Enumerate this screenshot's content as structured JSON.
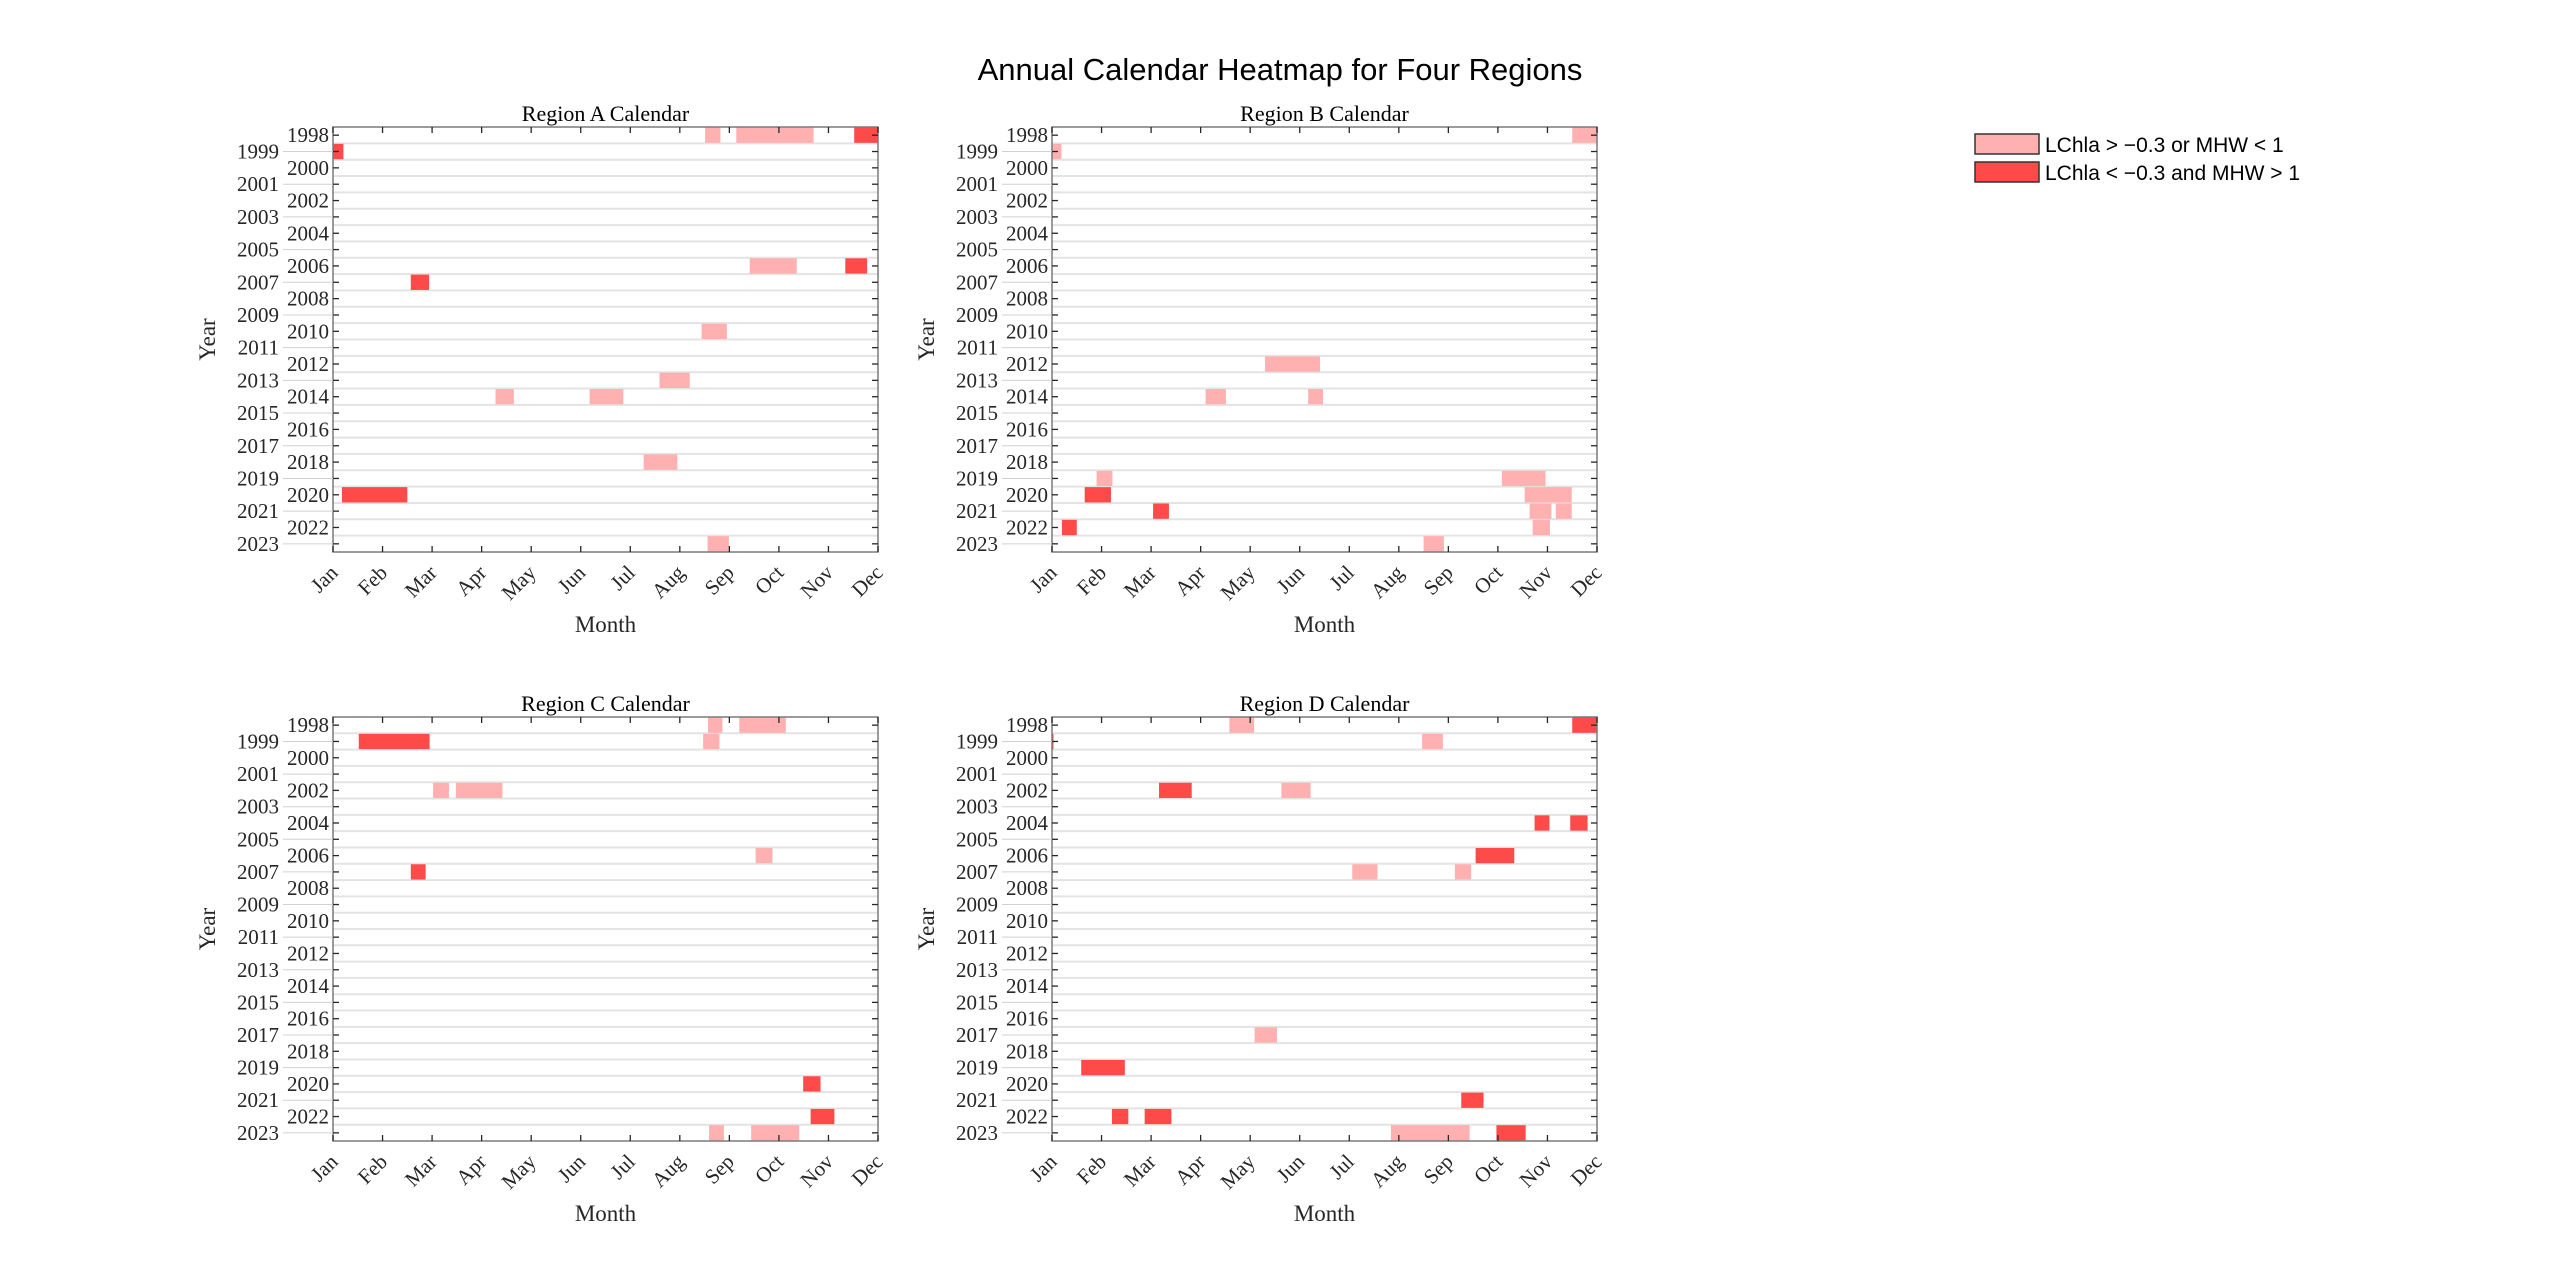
{
  "suptitle": "Annual Calendar Heatmap for Four Regions",
  "legend": [
    {
      "label": "LChla > −0.3 or MHW < 1",
      "color": "#FFB1B1",
      "class": "mild"
    },
    {
      "label": "LChla < −0.3 and MHW > 1",
      "color": "#FF4A4A",
      "class": "severe"
    }
  ],
  "chart_data": [
    {
      "type": "heatmap",
      "title": "Region A Calendar",
      "xlabel": "Month",
      "ylabel": "Year",
      "xticks": [
        "Jan",
        "Feb",
        "Mar",
        "Apr",
        "May",
        "Jun",
        "Jul",
        "Aug",
        "Sep",
        "Oct",
        "Nov",
        "Dec"
      ],
      "xlim": [
        1,
        12
      ],
      "years": [
        1998,
        1999,
        2000,
        2001,
        2002,
        2003,
        2004,
        2005,
        2006,
        2007,
        2008,
        2009,
        2010,
        2011,
        2012,
        2013,
        2014,
        2015,
        2016,
        2017,
        2018,
        2019,
        2020,
        2021,
        2022,
        2023
      ],
      "grid": true,
      "events": [
        {
          "year": 1998,
          "start": 8.51,
          "end": 8.82,
          "class": "mild"
        },
        {
          "year": 1998,
          "start": 9.14,
          "end": 10.7,
          "class": "mild"
        },
        {
          "year": 1998,
          "start": 11.52,
          "end": 12.0,
          "class": "severe"
        },
        {
          "year": 1999,
          "start": 1.0,
          "end": 1.21,
          "class": "severe"
        },
        {
          "year": 2006,
          "start": 9.41,
          "end": 10.36,
          "class": "mild"
        },
        {
          "year": 2006,
          "start": 11.34,
          "end": 11.78,
          "class": "severe"
        },
        {
          "year": 2007,
          "start": 2.57,
          "end": 2.94,
          "class": "severe"
        },
        {
          "year": 2010,
          "start": 8.44,
          "end": 8.95,
          "class": "mild"
        },
        {
          "year": 2013,
          "start": 7.59,
          "end": 8.2,
          "class": "mild"
        },
        {
          "year": 2014,
          "start": 4.28,
          "end": 4.65,
          "class": "mild"
        },
        {
          "year": 2014,
          "start": 6.18,
          "end": 6.86,
          "class": "mild"
        },
        {
          "year": 2018,
          "start": 7.27,
          "end": 7.95,
          "class": "mild"
        },
        {
          "year": 2020,
          "start": 1.18,
          "end": 2.5,
          "class": "severe"
        },
        {
          "year": 2023,
          "start": 8.56,
          "end": 8.99,
          "class": "mild"
        }
      ]
    },
    {
      "type": "heatmap",
      "title": "Region B Calendar",
      "xlabel": "Month",
      "ylabel": "Year",
      "xticks": [
        "Jan",
        "Feb",
        "Mar",
        "Apr",
        "May",
        "Jun",
        "Jul",
        "Aug",
        "Sep",
        "Oct",
        "Nov",
        "Dec"
      ],
      "xlim": [
        1,
        12
      ],
      "years": [
        1998,
        1999,
        2000,
        2001,
        2002,
        2003,
        2004,
        2005,
        2006,
        2007,
        2008,
        2009,
        2010,
        2011,
        2012,
        2013,
        2014,
        2015,
        2016,
        2017,
        2018,
        2019,
        2020,
        2021,
        2022,
        2023
      ],
      "grid": true,
      "events": [
        {
          "year": 1998,
          "start": 11.5,
          "end": 12.0,
          "class": "mild"
        },
        {
          "year": 1999,
          "start": 1.0,
          "end": 1.19,
          "class": "mild"
        },
        {
          "year": 2012,
          "start": 5.3,
          "end": 6.41,
          "class": "mild"
        },
        {
          "year": 2014,
          "start": 4.1,
          "end": 4.51,
          "class": "mild"
        },
        {
          "year": 2014,
          "start": 6.17,
          "end": 6.47,
          "class": "mild"
        },
        {
          "year": 2019,
          "start": 1.9,
          "end": 2.22,
          "class": "mild"
        },
        {
          "year": 2019,
          "start": 10.08,
          "end": 10.96,
          "class": "mild"
        },
        {
          "year": 2020,
          "start": 1.66,
          "end": 2.19,
          "class": "severe"
        },
        {
          "year": 2020,
          "start": 10.54,
          "end": 11.49,
          "class": "mild"
        },
        {
          "year": 2021,
          "start": 3.04,
          "end": 3.36,
          "class": "severe"
        },
        {
          "year": 2021,
          "start": 10.64,
          "end": 11.08,
          "class": "mild"
        },
        {
          "year": 2021,
          "start": 11.17,
          "end": 11.49,
          "class": "mild"
        },
        {
          "year": 2022,
          "start": 1.2,
          "end": 1.5,
          "class": "severe"
        },
        {
          "year": 2022,
          "start": 10.7,
          "end": 11.05,
          "class": "mild"
        },
        {
          "year": 2023,
          "start": 8.5,
          "end": 8.91,
          "class": "mild"
        }
      ]
    },
    {
      "type": "heatmap",
      "title": "Region C Calendar",
      "xlabel": "Month",
      "ylabel": "Year",
      "xticks": [
        "Jan",
        "Feb",
        "Mar",
        "Apr",
        "May",
        "Jun",
        "Jul",
        "Aug",
        "Sep",
        "Oct",
        "Nov",
        "Dec"
      ],
      "xlim": [
        1,
        12
      ],
      "years": [
        1998,
        1999,
        2000,
        2001,
        2002,
        2003,
        2004,
        2005,
        2006,
        2007,
        2008,
        2009,
        2010,
        2011,
        2012,
        2013,
        2014,
        2015,
        2016,
        2017,
        2018,
        2019,
        2020,
        2021,
        2022,
        2023
      ],
      "grid": true,
      "events": [
        {
          "year": 1998,
          "start": 8.57,
          "end": 8.86,
          "class": "mild"
        },
        {
          "year": 1998,
          "start": 9.2,
          "end": 10.14,
          "class": "mild"
        },
        {
          "year": 1999,
          "start": 1.52,
          "end": 2.95,
          "class": "severe"
        },
        {
          "year": 1999,
          "start": 8.47,
          "end": 8.8,
          "class": "mild"
        },
        {
          "year": 2002,
          "start": 3.02,
          "end": 3.34,
          "class": "mild"
        },
        {
          "year": 2002,
          "start": 3.48,
          "end": 4.42,
          "class": "mild"
        },
        {
          "year": 2006,
          "start": 9.53,
          "end": 9.87,
          "class": "mild"
        },
        {
          "year": 2007,
          "start": 2.57,
          "end": 2.87,
          "class": "severe"
        },
        {
          "year": 2020,
          "start": 10.49,
          "end": 10.84,
          "class": "severe"
        },
        {
          "year": 2022,
          "start": 10.64,
          "end": 11.12,
          "class": "severe"
        },
        {
          "year": 2023,
          "start": 8.59,
          "end": 8.89,
          "class": "mild"
        },
        {
          "year": 2023,
          "start": 9.44,
          "end": 10.41,
          "class": "mild"
        }
      ]
    },
    {
      "type": "heatmap",
      "title": "Region D Calendar",
      "xlabel": "Month",
      "ylabel": "Year",
      "xticks": [
        "Jan",
        "Feb",
        "Mar",
        "Apr",
        "May",
        "Jun",
        "Jul",
        "Aug",
        "Sep",
        "Oct",
        "Nov",
        "Dec"
      ],
      "xlim": [
        1,
        12
      ],
      "years": [
        1998,
        1999,
        2000,
        2001,
        2002,
        2003,
        2004,
        2005,
        2006,
        2007,
        2008,
        2009,
        2010,
        2011,
        2012,
        2013,
        2014,
        2015,
        2016,
        2017,
        2018,
        2019,
        2020,
        2021,
        2022,
        2023
      ],
      "grid": true,
      "events": [
        {
          "year": 1998,
          "start": 4.58,
          "end": 5.08,
          "class": "mild"
        },
        {
          "year": 1998,
          "start": 11.5,
          "end": 12.0,
          "class": "severe"
        },
        {
          "year": 1999,
          "start": 1.0,
          "end": 1.03,
          "class": "severe"
        },
        {
          "year": 1999,
          "start": 8.47,
          "end": 8.89,
          "class": "mild"
        },
        {
          "year": 2002,
          "start": 3.16,
          "end": 3.82,
          "class": "severe"
        },
        {
          "year": 2002,
          "start": 5.63,
          "end": 6.22,
          "class": "mild"
        },
        {
          "year": 2004,
          "start": 10.74,
          "end": 11.04,
          "class": "severe"
        },
        {
          "year": 2004,
          "start": 11.46,
          "end": 11.81,
          "class": "severe"
        },
        {
          "year": 2006,
          "start": 9.55,
          "end": 10.33,
          "class": "severe"
        },
        {
          "year": 2007,
          "start": 7.06,
          "end": 7.57,
          "class": "mild"
        },
        {
          "year": 2007,
          "start": 9.13,
          "end": 9.46,
          "class": "mild"
        },
        {
          "year": 2017,
          "start": 5.09,
          "end": 5.54,
          "class": "mild"
        },
        {
          "year": 2019,
          "start": 1.59,
          "end": 2.47,
          "class": "severe"
        },
        {
          "year": 2021,
          "start": 9.26,
          "end": 9.71,
          "class": "severe"
        },
        {
          "year": 2022,
          "start": 2.21,
          "end": 2.54,
          "class": "severe"
        },
        {
          "year": 2022,
          "start": 2.87,
          "end": 3.41,
          "class": "severe"
        },
        {
          "year": 2023,
          "start": 7.84,
          "end": 9.43,
          "class": "mild"
        },
        {
          "year": 2023,
          "start": 9.97,
          "end": 10.56,
          "class": "severe"
        }
      ]
    }
  ]
}
